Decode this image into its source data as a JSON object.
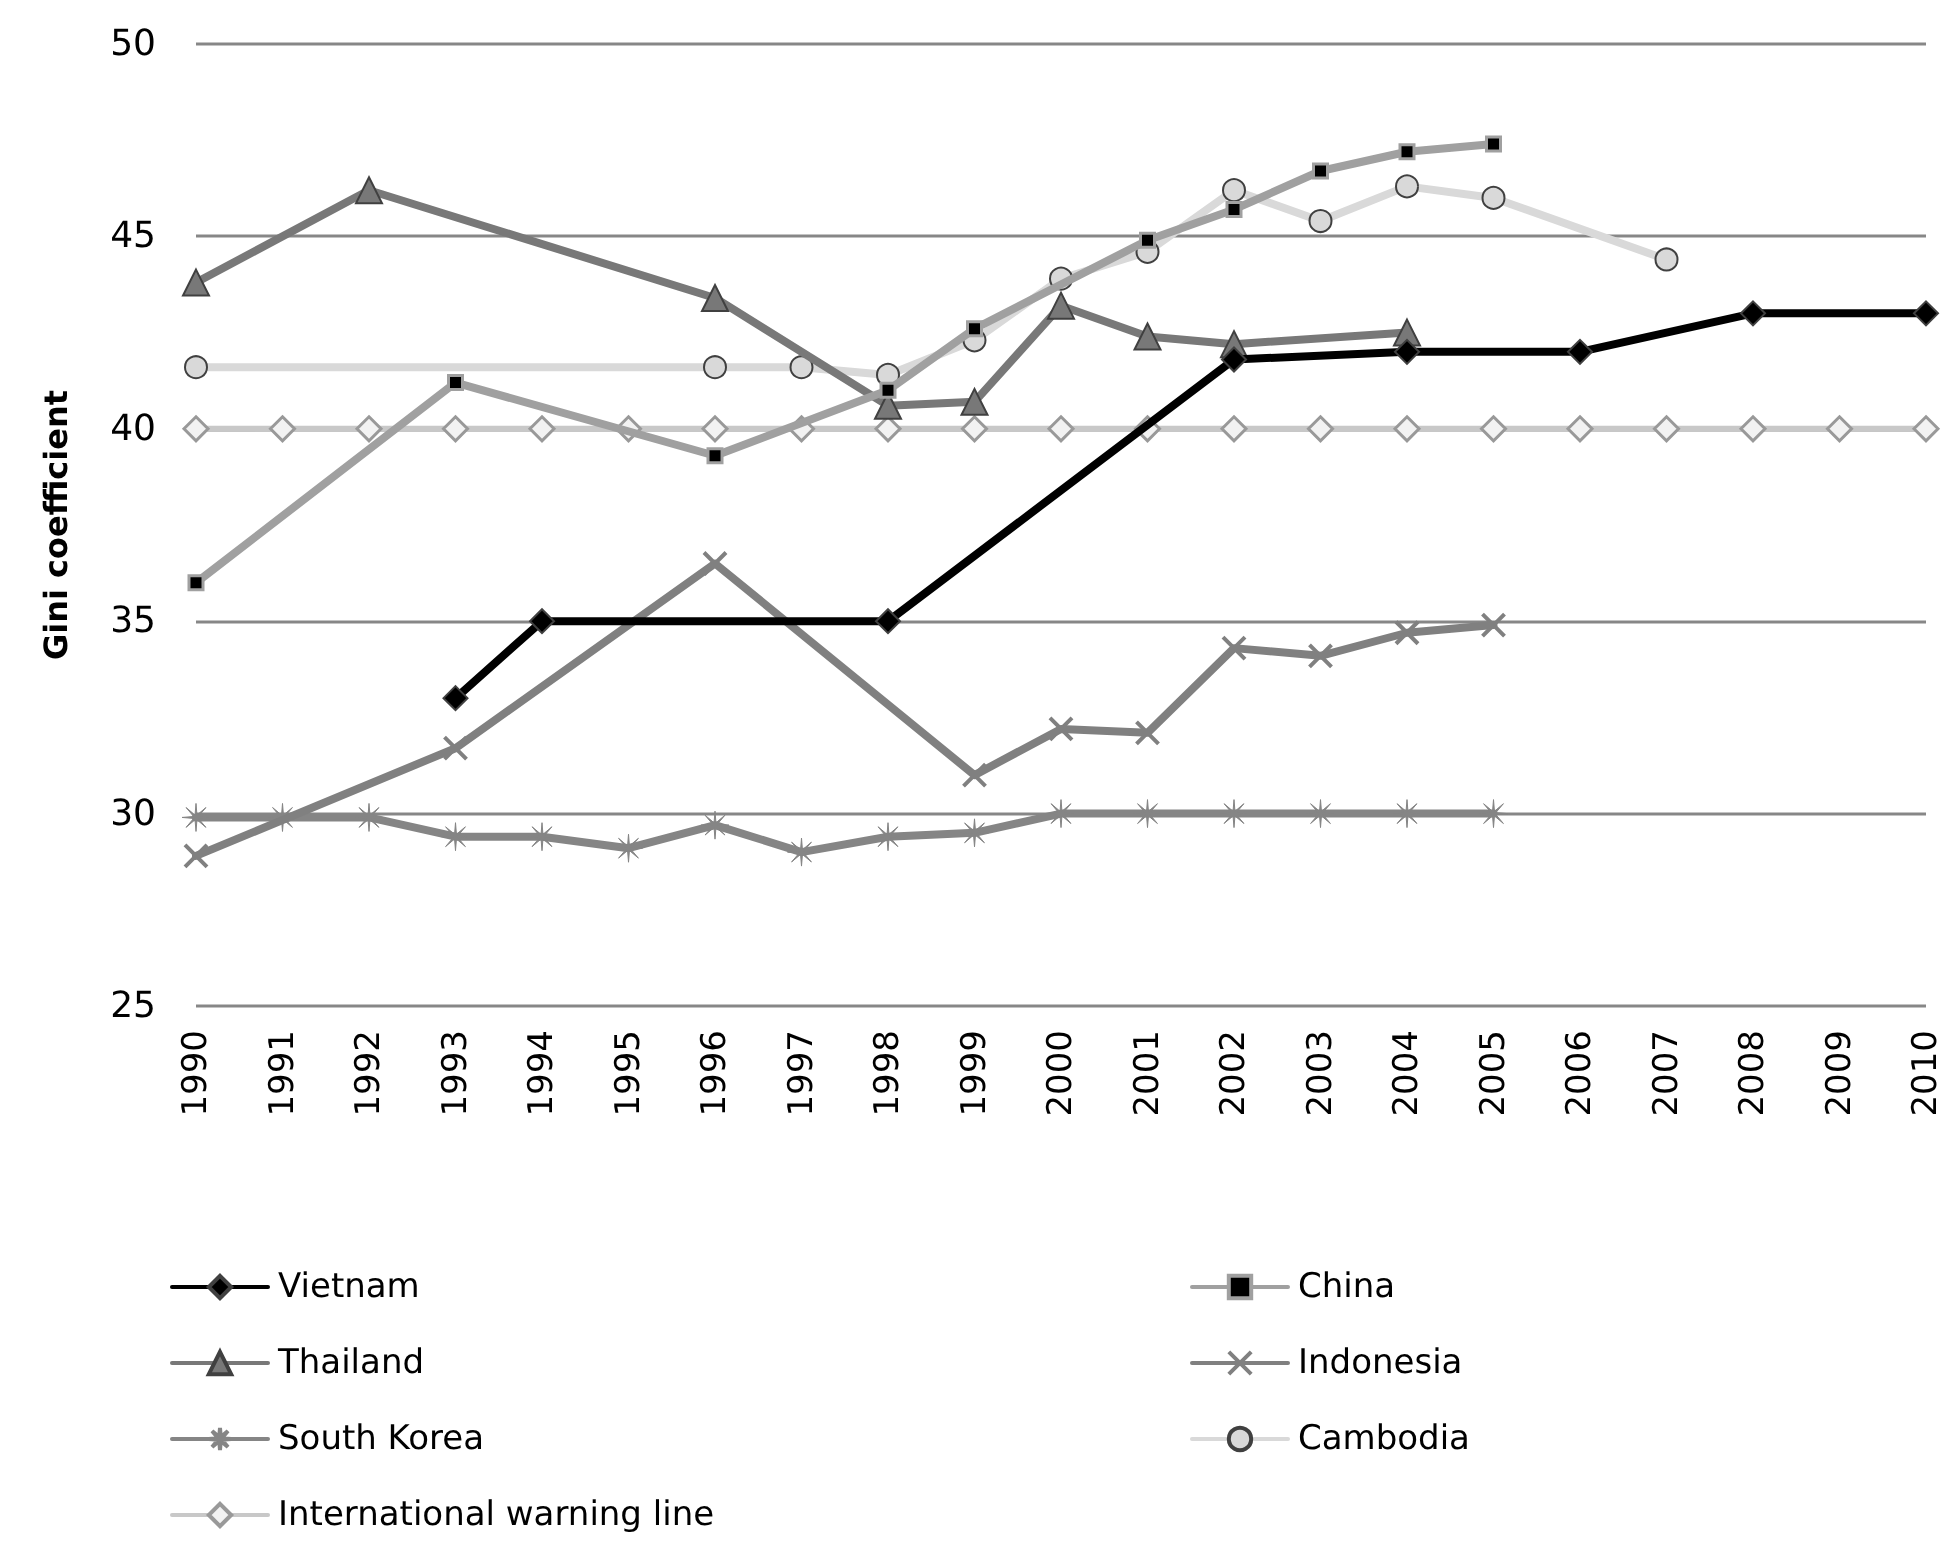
{
  "chart_data": {
    "type": "line",
    "ylabel": "Gini coefficient",
    "categories": [
      "1990",
      "1991",
      "1992",
      "1993",
      "1994",
      "1995",
      "1996",
      "1997",
      "1998",
      "1999",
      "2000",
      "2001",
      "2002",
      "2003",
      "2004",
      "2005",
      "2006",
      "2007",
      "2008",
      "2009",
      "2010"
    ],
    "ylim": [
      25,
      50
    ],
    "yticks": [
      25,
      30,
      35,
      40,
      45,
      50
    ],
    "grid": "y",
    "legend": "bottom",
    "series": [
      {
        "name": "Vietnam",
        "color": "#000000",
        "marker": "diamond",
        "values": [
          null,
          null,
          null,
          33,
          35,
          null,
          null,
          null,
          35,
          null,
          null,
          null,
          41.8,
          null,
          42,
          null,
          42,
          null,
          43,
          null,
          43
        ]
      },
      {
        "name": "China",
        "color": "#a0a0a0",
        "marker": "square",
        "values": [
          36,
          null,
          null,
          41.2,
          null,
          null,
          39.3,
          null,
          41,
          42.6,
          null,
          44.9,
          45.7,
          46.7,
          47.2,
          47.4,
          null,
          null,
          null,
          null,
          null
        ]
      },
      {
        "name": "Thailand",
        "color": "#787878",
        "marker": "triangle",
        "values": [
          43.8,
          null,
          46.2,
          null,
          null,
          null,
          43.4,
          null,
          40.6,
          40.7,
          43.2,
          42.4,
          42.2,
          null,
          42.5,
          null,
          null,
          null,
          null,
          null,
          null
        ]
      },
      {
        "name": "Indonesia",
        "color": "#808080",
        "marker": "cross",
        "values": [
          28.9,
          null,
          null,
          31.7,
          null,
          null,
          36.5,
          null,
          null,
          31,
          32.2,
          32.1,
          34.3,
          34.1,
          34.7,
          34.9,
          null,
          null,
          null,
          null,
          null
        ]
      },
      {
        "name": "South Korea",
        "color": "#858585",
        "marker": "star",
        "values": [
          29.9,
          29.9,
          29.9,
          29.4,
          29.4,
          29.1,
          29.7,
          29,
          29.4,
          29.5,
          30,
          30,
          30,
          30,
          30,
          30,
          null,
          null,
          null,
          null,
          null
        ]
      },
      {
        "name": "Cambodia",
        "color": "#d9d9d9",
        "marker": "circle",
        "values": [
          41.6,
          null,
          null,
          null,
          null,
          null,
          41.6,
          41.6,
          41.4,
          42.3,
          43.9,
          44.6,
          46.2,
          45.4,
          46.3,
          46,
          null,
          44.4,
          null,
          null,
          null
        ]
      },
      {
        "name": "International warning line",
        "color": "#c8c8c8",
        "marker": "diamond",
        "values": [
          40,
          40,
          40,
          40,
          40,
          40,
          40,
          40,
          40,
          40,
          40,
          40,
          40,
          40,
          40,
          40,
          40,
          40,
          40,
          40,
          40
        ]
      }
    ]
  }
}
